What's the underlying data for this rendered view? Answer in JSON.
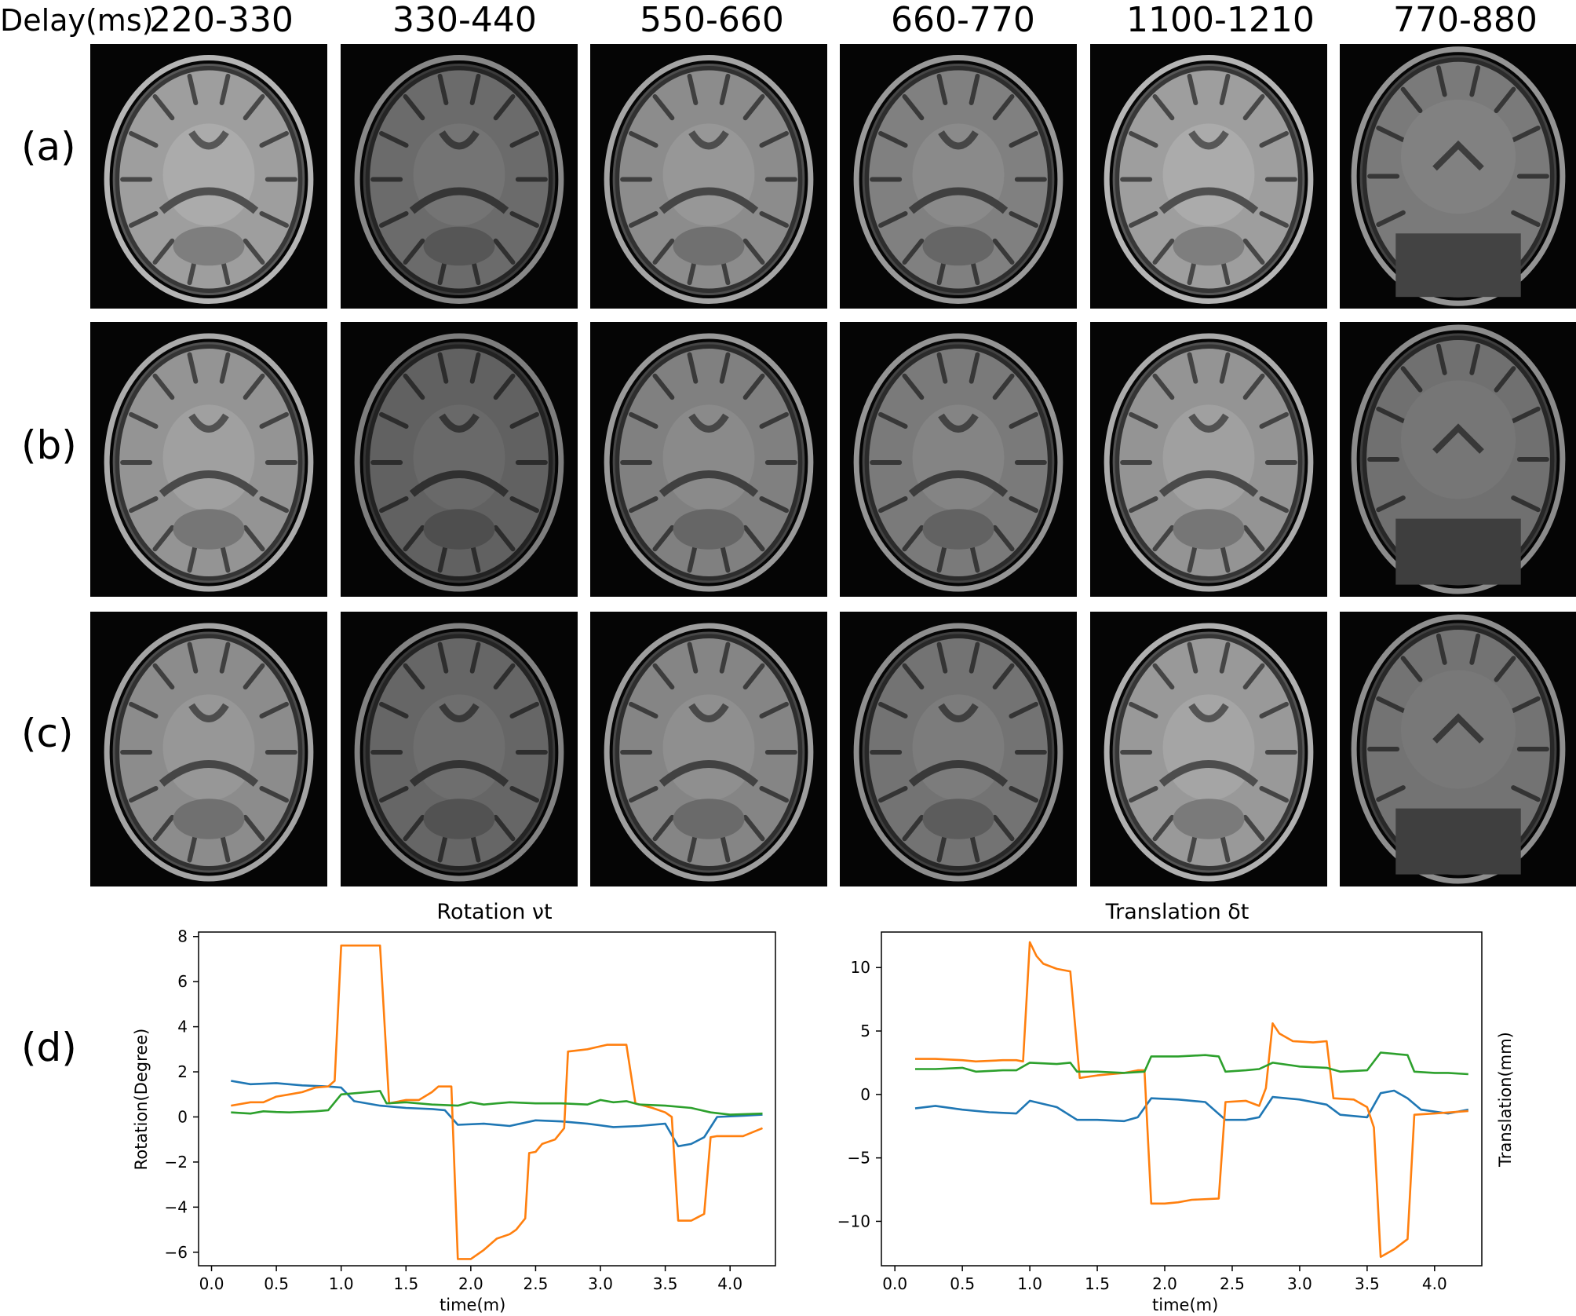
{
  "header": {
    "delay_label": "Delay(ms)",
    "columns": [
      "220-330",
      "330-440",
      "550-660",
      "660-770",
      "1100-1210",
      "770-880"
    ]
  },
  "rows": [
    "(a)",
    "(b)",
    "(c)",
    "(d)"
  ],
  "tile_shading": {
    "row_brightness": [
      [
        0.62,
        0.42,
        0.55,
        0.5,
        0.62,
        0.48
      ],
      [
        0.58,
        0.38,
        0.5,
        0.48,
        0.58,
        0.44
      ],
      [
        0.55,
        0.4,
        0.52,
        0.45,
        0.6,
        0.45
      ]
    ]
  },
  "chart_data": [
    {
      "type": "line",
      "title": "Rotation νt",
      "xlabel": "time(m)",
      "ylabel": "Rotation(Degree)",
      "xlim": [
        -0.1,
        4.35
      ],
      "ylim": [
        -6.6,
        8.2
      ],
      "xticks": [
        0.0,
        0.5,
        1.0,
        1.5,
        2.0,
        2.5,
        3.0,
        3.5,
        4.0
      ],
      "yticks": [
        -6,
        -4,
        -2,
        0,
        2,
        4,
        6,
        8
      ],
      "colors": [
        "#1f77b4",
        "#ff7f0e",
        "#2ca02c"
      ],
      "series": [
        {
          "values": [
            [
              0.15,
              1.6
            ],
            [
              0.3,
              1.45
            ],
            [
              0.5,
              1.5
            ],
            [
              0.7,
              1.4
            ],
            [
              0.9,
              1.35
            ],
            [
              1.0,
              1.3
            ],
            [
              1.1,
              0.7
            ],
            [
              1.3,
              0.5
            ],
            [
              1.5,
              0.4
            ],
            [
              1.7,
              0.35
            ],
            [
              1.8,
              0.3
            ],
            [
              1.9,
              -0.35
            ],
            [
              2.1,
              -0.3
            ],
            [
              2.3,
              -0.4
            ],
            [
              2.5,
              -0.15
            ],
            [
              2.7,
              -0.2
            ],
            [
              2.9,
              -0.3
            ],
            [
              3.1,
              -0.45
            ],
            [
              3.3,
              -0.4
            ],
            [
              3.5,
              -0.3
            ],
            [
              3.6,
              -1.3
            ],
            [
              3.7,
              -1.2
            ],
            [
              3.8,
              -0.9
            ],
            [
              3.9,
              0.0
            ],
            [
              4.1,
              0.05
            ],
            [
              4.25,
              0.1
            ]
          ]
        },
        {
          "values": [
            [
              0.15,
              0.5
            ],
            [
              0.3,
              0.65
            ],
            [
              0.4,
              0.65
            ],
            [
              0.5,
              0.9
            ],
            [
              0.6,
              1.0
            ],
            [
              0.7,
              1.1
            ],
            [
              0.8,
              1.3
            ],
            [
              0.9,
              1.35
            ],
            [
              0.95,
              1.6
            ],
            [
              1.0,
              7.6
            ],
            [
              1.1,
              7.6
            ],
            [
              1.2,
              7.6
            ],
            [
              1.3,
              7.6
            ],
            [
              1.37,
              0.6
            ],
            [
              1.5,
              0.75
            ],
            [
              1.6,
              0.75
            ],
            [
              1.7,
              1.1
            ],
            [
              1.75,
              1.35
            ],
            [
              1.85,
              1.35
            ],
            [
              1.9,
              -6.3
            ],
            [
              2.0,
              -6.3
            ],
            [
              2.1,
              -5.9
            ],
            [
              2.2,
              -5.4
            ],
            [
              2.3,
              -5.2
            ],
            [
              2.35,
              -5.0
            ],
            [
              2.42,
              -4.5
            ],
            [
              2.45,
              -1.6
            ],
            [
              2.5,
              -1.55
            ],
            [
              2.55,
              -1.2
            ],
            [
              2.65,
              -1.0
            ],
            [
              2.72,
              -0.5
            ],
            [
              2.75,
              2.9
            ],
            [
              2.9,
              3.0
            ],
            [
              3.05,
              3.2
            ],
            [
              3.2,
              3.2
            ],
            [
              3.27,
              0.6
            ],
            [
              3.4,
              0.4
            ],
            [
              3.5,
              0.2
            ],
            [
              3.55,
              0.0
            ],
            [
              3.6,
              -4.6
            ],
            [
              3.7,
              -4.6
            ],
            [
              3.8,
              -4.3
            ],
            [
              3.85,
              -0.9
            ],
            [
              3.9,
              -0.85
            ],
            [
              4.1,
              -0.85
            ],
            [
              4.25,
              -0.5
            ]
          ]
        },
        {
          "values": [
            [
              0.15,
              0.2
            ],
            [
              0.3,
              0.15
            ],
            [
              0.4,
              0.25
            ],
            [
              0.5,
              0.22
            ],
            [
              0.6,
              0.2
            ],
            [
              0.8,
              0.25
            ],
            [
              0.9,
              0.3
            ],
            [
              1.0,
              1.0
            ],
            [
              1.2,
              1.1
            ],
            [
              1.3,
              1.15
            ],
            [
              1.35,
              0.6
            ],
            [
              1.5,
              0.65
            ],
            [
              1.7,
              0.55
            ],
            [
              1.9,
              0.5
            ],
            [
              2.0,
              0.65
            ],
            [
              2.1,
              0.55
            ],
            [
              2.3,
              0.65
            ],
            [
              2.5,
              0.6
            ],
            [
              2.7,
              0.6
            ],
            [
              2.9,
              0.55
            ],
            [
              3.0,
              0.75
            ],
            [
              3.1,
              0.65
            ],
            [
              3.2,
              0.7
            ],
            [
              3.3,
              0.55
            ],
            [
              3.5,
              0.5
            ],
            [
              3.7,
              0.4
            ],
            [
              3.85,
              0.2
            ],
            [
              4.0,
              0.1
            ],
            [
              4.25,
              0.15
            ]
          ]
        }
      ]
    },
    {
      "type": "line",
      "title": "Translation δt",
      "xlabel": "time(m)",
      "ylabel": "Translation(mm)",
      "xlim": [
        -0.1,
        4.35
      ],
      "ylim": [
        -13.5,
        12.8
      ],
      "xticks": [
        0.0,
        0.5,
        1.0,
        1.5,
        2.0,
        2.5,
        3.0,
        3.5,
        4.0
      ],
      "yticks": [
        -10,
        -5,
        0,
        5,
        10
      ],
      "colors": [
        "#1f77b4",
        "#ff7f0e",
        "#2ca02c"
      ],
      "series": [
        {
          "values": [
            [
              0.15,
              -1.1
            ],
            [
              0.3,
              -0.9
            ],
            [
              0.5,
              -1.2
            ],
            [
              0.7,
              -1.4
            ],
            [
              0.9,
              -1.5
            ],
            [
              1.0,
              -0.5
            ],
            [
              1.2,
              -1.0
            ],
            [
              1.35,
              -2.0
            ],
            [
              1.5,
              -2.0
            ],
            [
              1.7,
              -2.1
            ],
            [
              1.8,
              -1.8
            ],
            [
              1.9,
              -0.3
            ],
            [
              2.1,
              -0.4
            ],
            [
              2.3,
              -0.6
            ],
            [
              2.45,
              -2.0
            ],
            [
              2.6,
              -2.0
            ],
            [
              2.7,
              -1.8
            ],
            [
              2.8,
              -0.2
            ],
            [
              3.0,
              -0.4
            ],
            [
              3.2,
              -0.8
            ],
            [
              3.3,
              -1.6
            ],
            [
              3.5,
              -1.8
            ],
            [
              3.6,
              0.1
            ],
            [
              3.7,
              0.3
            ],
            [
              3.8,
              -0.3
            ],
            [
              3.9,
              -1.2
            ],
            [
              4.1,
              -1.5
            ],
            [
              4.25,
              -1.2
            ]
          ]
        },
        {
          "values": [
            [
              0.15,
              2.8
            ],
            [
              0.3,
              2.8
            ],
            [
              0.5,
              2.7
            ],
            [
              0.6,
              2.6
            ],
            [
              0.8,
              2.7
            ],
            [
              0.9,
              2.7
            ],
            [
              0.95,
              2.6
            ],
            [
              1.0,
              12.0
            ],
            [
              1.05,
              10.9
            ],
            [
              1.1,
              10.3
            ],
            [
              1.2,
              9.9
            ],
            [
              1.3,
              9.7
            ],
            [
              1.37,
              1.3
            ],
            [
              1.5,
              1.5
            ],
            [
              1.6,
              1.6
            ],
            [
              1.7,
              1.7
            ],
            [
              1.8,
              1.9
            ],
            [
              1.85,
              1.9
            ],
            [
              1.9,
              -8.6
            ],
            [
              2.0,
              -8.6
            ],
            [
              2.1,
              -8.5
            ],
            [
              2.2,
              -8.3
            ],
            [
              2.4,
              -8.2
            ],
            [
              2.45,
              -0.6
            ],
            [
              2.6,
              -0.5
            ],
            [
              2.7,
              -0.9
            ],
            [
              2.75,
              0.5
            ],
            [
              2.8,
              5.6
            ],
            [
              2.85,
              4.8
            ],
            [
              2.95,
              4.2
            ],
            [
              3.1,
              4.1
            ],
            [
              3.2,
              4.2
            ],
            [
              3.25,
              -0.3
            ],
            [
              3.4,
              -0.4
            ],
            [
              3.5,
              -1.0
            ],
            [
              3.55,
              -2.6
            ],
            [
              3.6,
              -12.8
            ],
            [
              3.7,
              -12.2
            ],
            [
              3.8,
              -11.4
            ],
            [
              3.85,
              -1.6
            ],
            [
              4.0,
              -1.5
            ],
            [
              4.25,
              -1.3
            ]
          ]
        },
        {
          "values": [
            [
              0.15,
              2.0
            ],
            [
              0.3,
              2.0
            ],
            [
              0.5,
              2.1
            ],
            [
              0.6,
              1.8
            ],
            [
              0.8,
              1.9
            ],
            [
              0.9,
              1.9
            ],
            [
              1.0,
              2.5
            ],
            [
              1.2,
              2.4
            ],
            [
              1.3,
              2.5
            ],
            [
              1.35,
              1.8
            ],
            [
              1.5,
              1.8
            ],
            [
              1.7,
              1.7
            ],
            [
              1.85,
              1.8
            ],
            [
              1.9,
              3.0
            ],
            [
              2.1,
              3.0
            ],
            [
              2.3,
              3.1
            ],
            [
              2.4,
              3.0
            ],
            [
              2.45,
              1.8
            ],
            [
              2.6,
              1.9
            ],
            [
              2.7,
              2.0
            ],
            [
              2.8,
              2.5
            ],
            [
              3.0,
              2.2
            ],
            [
              3.2,
              2.1
            ],
            [
              3.3,
              1.8
            ],
            [
              3.5,
              1.9
            ],
            [
              3.6,
              3.3
            ],
            [
              3.8,
              3.1
            ],
            [
              3.85,
              1.8
            ],
            [
              4.0,
              1.7
            ],
            [
              4.1,
              1.7
            ],
            [
              4.25,
              1.6
            ]
          ]
        }
      ]
    }
  ]
}
